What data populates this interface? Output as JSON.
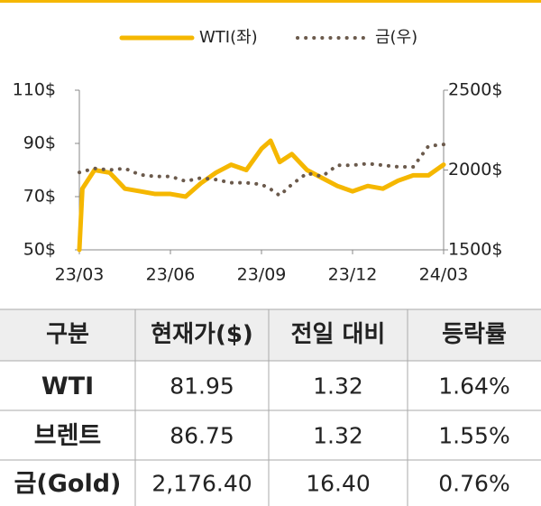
{
  "chart_data": {
    "type": "line",
    "x": [
      0,
      0.1,
      0.5,
      1,
      1.5,
      2,
      2.5,
      3,
      3.5,
      4,
      4.5,
      5,
      5.5,
      6,
      6.3,
      6.6,
      7,
      7.5,
      8,
      8.5,
      9,
      9.5,
      10,
      10.5,
      11,
      11.5,
      12
    ],
    "xlim": [
      0,
      12
    ],
    "xticks": [
      {
        "value": 0,
        "label": "23/03"
      },
      {
        "value": 3,
        "label": "23/06"
      },
      {
        "value": 6,
        "label": "23/09"
      },
      {
        "value": 9,
        "label": "23/12"
      },
      {
        "value": 12,
        "label": "24/03"
      }
    ],
    "ylim": [
      50,
      110
    ],
    "yticks": [
      {
        "value": 50,
        "label": "50$"
      },
      {
        "value": 70,
        "label": "70$"
      },
      {
        "value": 90,
        "label": "90$"
      },
      {
        "value": 110,
        "label": "110$"
      }
    ],
    "y2lim": [
      1500,
      2500
    ],
    "y2ticks": [
      {
        "value": 1500,
        "label": "1500$"
      },
      {
        "value": 2000,
        "label": "2000$"
      },
      {
        "value": 2500,
        "label": "2500$"
      }
    ],
    "series": [
      {
        "name": "WTI(좌)",
        "color": "#f5b700",
        "style": "solid",
        "values": [
          50,
          73,
          80,
          79,
          73,
          72,
          71,
          71,
          70,
          75,
          79,
          82,
          80,
          88,
          91,
          83,
          86,
          80,
          77,
          74,
          72,
          74,
          73,
          76,
          78,
          78,
          82
        ]
      },
      {
        "name": "금(우)",
        "color": "#6b5a4c",
        "style": "dotted",
        "axis": "y2",
        "values": [
          1985,
          1990,
          2010,
          2000,
          2010,
          1970,
          1960,
          1960,
          1930,
          1950,
          1940,
          1920,
          1920,
          1910,
          1880,
          1840,
          1910,
          1980,
          1960,
          2030,
          2030,
          2040,
          2030,
          2020,
          2020,
          2150,
          2160
        ]
      }
    ]
  },
  "table": {
    "columns": [
      "구분",
      "현재가($)",
      "전일 대비",
      "등락률"
    ],
    "rows": [
      [
        "WTI",
        "81.95",
        "1.32",
        "1.64%"
      ],
      [
        "브렌트",
        "86.75",
        "1.32",
        "1.55%"
      ],
      [
        "금(Gold)",
        "2,176.40",
        "16.40",
        "0.76%"
      ]
    ]
  }
}
